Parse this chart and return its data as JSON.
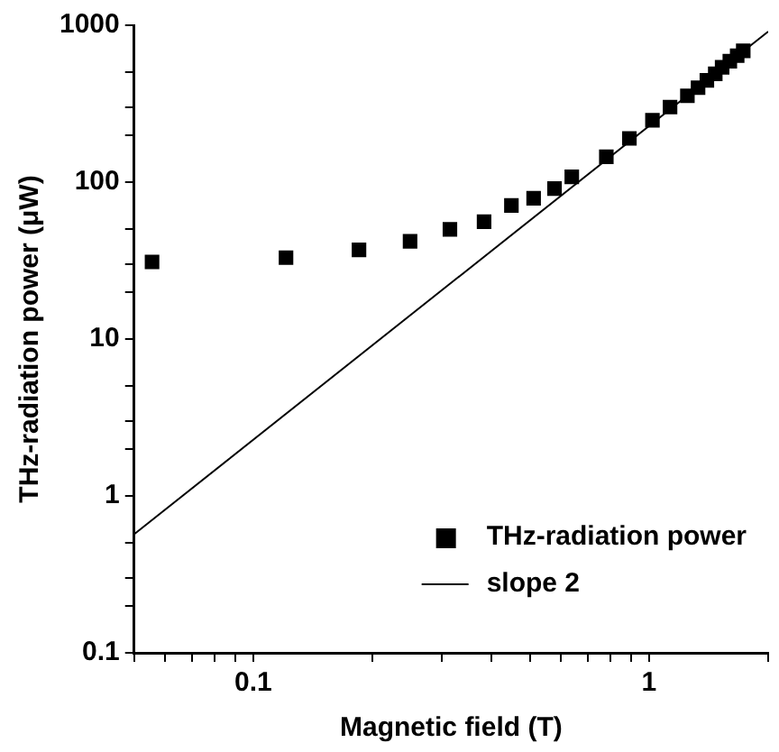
{
  "chart_data": {
    "type": "scatter",
    "xlabel": "Magnetic field (T)",
    "ylabel": "THz-radiation power (μW)",
    "log": "xy",
    "xlim": [
      0.05,
      2
    ],
    "ylim": [
      0.1,
      1000
    ],
    "xticks": [
      {
        "value": 0.05,
        "label": null
      },
      {
        "value": 0.06,
        "label": null
      },
      {
        "value": 0.07,
        "label": null
      },
      {
        "value": 0.08,
        "label": null
      },
      {
        "value": 0.09,
        "label": null
      },
      0.1,
      {
        "value": 0.2,
        "label": null
      },
      {
        "value": 0.3,
        "label": null
      },
      {
        "value": 0.4,
        "label": null
      },
      {
        "value": 0.5,
        "label": null
      },
      {
        "value": 0.6,
        "label": null
      },
      {
        "value": 0.7,
        "label": null
      },
      {
        "value": 0.8,
        "label": null
      },
      {
        "value": 0.9,
        "label": null
      },
      1,
      {
        "value": 2,
        "label": null
      }
    ],
    "yticks": [
      0.1,
      {
        "value": 0.2,
        "label": null
      },
      {
        "value": 0.3,
        "label": null
      },
      {
        "value": 0.5,
        "label": null
      },
      1,
      {
        "value": 2,
        "label": null
      },
      {
        "value": 3,
        "label": null
      },
      {
        "value": 5,
        "label": null
      },
      10,
      {
        "value": 20,
        "label": null
      },
      {
        "value": 30,
        "label": null
      },
      {
        "value": 50,
        "label": null
      },
      100,
      {
        "value": 200,
        "label": null
      },
      {
        "value": 300,
        "label": null
      },
      {
        "value": 500,
        "label": null
      },
      1000
    ],
    "legend": "bottom right",
    "grid": false,
    "series": [
      {
        "name": "THz-radiation power",
        "marker": "square",
        "color": "#000000",
        "x": [
          0.0555,
          0.121,
          0.185,
          0.249,
          0.314,
          0.383,
          0.449,
          0.511,
          0.577,
          0.638,
          0.78,
          0.892,
          1.02,
          1.13,
          1.25,
          1.33,
          1.4,
          1.47,
          1.53,
          1.6,
          1.67,
          1.73
        ],
        "values": [
          31,
          33,
          37,
          42,
          50,
          56,
          71,
          79,
          91,
          108,
          145,
          190,
          248,
          301,
          355,
          400,
          445,
          490,
          540,
          590,
          640,
          687
        ]
      },
      {
        "name": "slope 2",
        "type": "line",
        "marker": "none",
        "line_style": "solid",
        "color": "#000000",
        "x": [
          0.05,
          2
        ],
        "values": [
          0.57,
          912
        ]
      }
    ]
  }
}
